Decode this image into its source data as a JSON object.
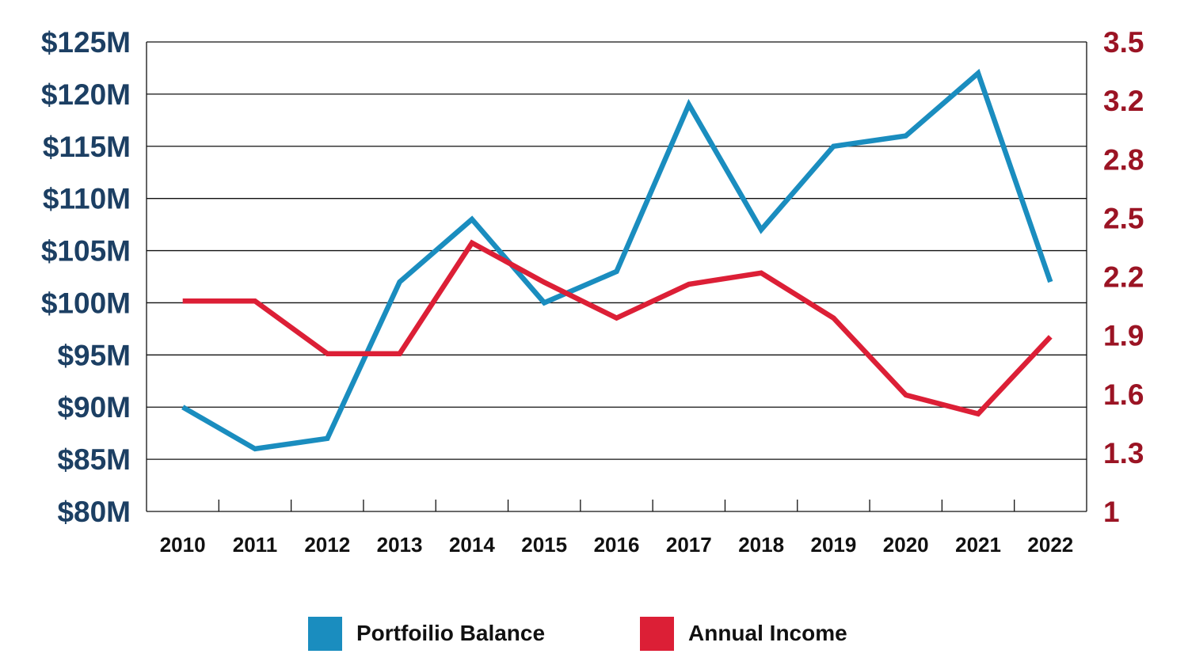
{
  "chart_data": {
    "type": "line",
    "x": [
      "2010",
      "2011",
      "2012",
      "2013",
      "2014",
      "2015",
      "2016",
      "2017",
      "2018",
      "2019",
      "2020",
      "2021",
      "2022"
    ],
    "series": [
      {
        "name": "Portfoilio Balance",
        "axis": "left",
        "color": "#1a8dbf",
        "values": [
          90,
          86,
          87,
          102,
          108,
          100,
          103,
          119,
          107,
          115,
          116,
          122,
          102
        ]
      },
      {
        "name": "Annual Income",
        "axis": "right",
        "color": "#dc1f36",
        "values": [
          2.12,
          2.12,
          1.84,
          1.84,
          2.43,
          2.22,
          2.03,
          2.21,
          2.27,
          2.03,
          1.62,
          1.52,
          1.93
        ]
      }
    ],
    "y_left": {
      "ticks": [
        "$80M",
        "$85M",
        "$90M",
        "$95M",
        "$100M",
        "$105M",
        "$110M",
        "$115M",
        "$120M",
        "$125M"
      ],
      "range": [
        80,
        125
      ],
      "color": "#1c3f63"
    },
    "y_right": {
      "ticks": [
        "1",
        "1.3",
        "1.6",
        "1.9",
        "2.2",
        "2.5",
        "2.8",
        "3.2",
        "3.5"
      ],
      "range": [
        1,
        3.5
      ],
      "color": "#9b1424"
    },
    "grid": true,
    "legend_position": "bottom-center"
  },
  "legend": {
    "balance_label": "Portfoilio Balance",
    "income_label": "Annual Income",
    "balance_color": "#1a8dbf",
    "income_color": "#dc1f36"
  }
}
